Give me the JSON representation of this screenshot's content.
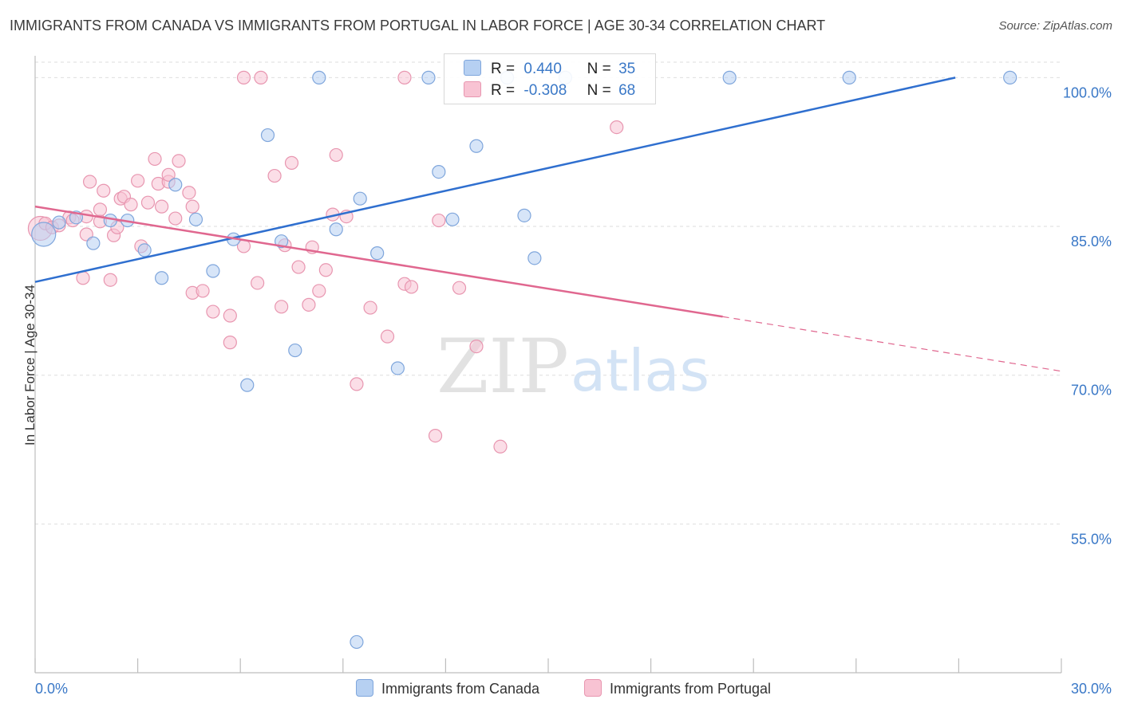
{
  "title": "IMMIGRANTS FROM CANADA VS IMMIGRANTS FROM PORTUGAL IN LABOR FORCE | AGE 30-34 CORRELATION CHART",
  "source": "Source: ZipAtlas.com",
  "watermark": {
    "zip": "ZIP",
    "atlas": "atlas"
  },
  "legend": {
    "r_label": "R =",
    "n_label": "N =",
    "canada": {
      "r": "0.440",
      "n": "35"
    },
    "portugal": {
      "r": "-0.308",
      "n": "68"
    }
  },
  "colors": {
    "canada_fill": "#b6d0f2",
    "canada_stroke": "#7fa6dc",
    "canada_line": "#2f6fcf",
    "portugal_fill": "#f8c3d3",
    "portugal_stroke": "#e896b0",
    "portugal_line": "#e0678f",
    "tick_label": "#3a78c7",
    "grid": "#dedede"
  },
  "chart_data": {
    "type": "scatter",
    "title": "IMMIGRANTS FROM CANADA VS IMMIGRANTS FROM PORTUGAL IN LABOR FORCE | AGE 30-34 CORRELATION CHART",
    "xlabel": "",
    "ylabel": "In Labor Force | Age 30-34",
    "xlim": [
      0,
      30
    ],
    "ylim": [
      40,
      102.2
    ],
    "x_tick_labels": [
      "0.0%",
      "30.0%"
    ],
    "y_ticks": [
      {
        "value": 55,
        "label": "55.0%"
      },
      {
        "value": 70,
        "label": "70.0%"
      },
      {
        "value": 85,
        "label": "85.0%"
      },
      {
        "value": 100,
        "label": "100.0%"
      }
    ],
    "series": [
      {
        "name": "Immigrants from Canada",
        "r": 0.44,
        "n": 35,
        "trend": {
          "x": [
            0,
            26.9
          ],
          "y": [
            79.4,
            100.0
          ],
          "dashed_to_x": null
        },
        "points": [
          {
            "x": 0.25,
            "y": 84.2,
            "big": true
          },
          {
            "x": 0.7,
            "y": 85.4
          },
          {
            "x": 1.2,
            "y": 85.9
          },
          {
            "x": 1.7,
            "y": 83.3
          },
          {
            "x": 2.2,
            "y": 85.6
          },
          {
            "x": 2.7,
            "y": 85.6
          },
          {
            "x": 3.2,
            "y": 82.6
          },
          {
            "x": 3.7,
            "y": 79.8
          },
          {
            "x": 4.1,
            "y": 89.2
          },
          {
            "x": 4.7,
            "y": 85.7
          },
          {
            "x": 5.2,
            "y": 80.5
          },
          {
            "x": 5.8,
            "y": 83.7
          },
          {
            "x": 6.2,
            "y": 69.0
          },
          {
            "x": 6.8,
            "y": 94.2
          },
          {
            "x": 7.2,
            "y": 83.5
          },
          {
            "x": 7.6,
            "y": 72.5
          },
          {
            "x": 8.3,
            "y": 100.0
          },
          {
            "x": 8.8,
            "y": 84.7
          },
          {
            "x": 9.4,
            "y": 43.1
          },
          {
            "x": 9.5,
            "y": 87.8
          },
          {
            "x": 10.0,
            "y": 82.3
          },
          {
            "x": 10.6,
            "y": 70.7
          },
          {
            "x": 11.5,
            "y": 100.0
          },
          {
            "x": 11.8,
            "y": 90.5
          },
          {
            "x": 12.2,
            "y": 85.7
          },
          {
            "x": 12.9,
            "y": 93.1
          },
          {
            "x": 13.8,
            "y": 100.0
          },
          {
            "x": 14.3,
            "y": 86.1
          },
          {
            "x": 14.6,
            "y": 81.8
          },
          {
            "x": 15.5,
            "y": 100.0
          },
          {
            "x": 20.3,
            "y": 100.0
          },
          {
            "x": 23.8,
            "y": 100.0
          },
          {
            "x": 28.5,
            "y": 100.0
          }
        ]
      },
      {
        "name": "Immigrants from Portugal",
        "r": -0.308,
        "n": 68,
        "trend": {
          "x": [
            0,
            20.1
          ],
          "y": [
            87.0,
            75.9
          ],
          "dashed_to_x": 30.0,
          "dashed_to_y": 70.4
        },
        "points": [
          {
            "x": 0.15,
            "y": 84.8,
            "big": true
          },
          {
            "x": 0.3,
            "y": 85.3
          },
          {
            "x": 0.5,
            "y": 84.9
          },
          {
            "x": 0.7,
            "y": 85.1
          },
          {
            "x": 1.0,
            "y": 85.9
          },
          {
            "x": 1.1,
            "y": 85.6
          },
          {
            "x": 1.5,
            "y": 84.2
          },
          {
            "x": 1.5,
            "y": 86.0
          },
          {
            "x": 1.4,
            "y": 79.8
          },
          {
            "x": 1.6,
            "y": 89.5
          },
          {
            "x": 1.9,
            "y": 85.5
          },
          {
            "x": 1.9,
            "y": 86.7
          },
          {
            "x": 2.0,
            "y": 88.6
          },
          {
            "x": 2.2,
            "y": 79.6
          },
          {
            "x": 2.3,
            "y": 84.1
          },
          {
            "x": 2.4,
            "y": 84.9
          },
          {
            "x": 2.5,
            "y": 87.8
          },
          {
            "x": 2.6,
            "y": 88.0
          },
          {
            "x": 2.8,
            "y": 87.2
          },
          {
            "x": 3.0,
            "y": 89.6
          },
          {
            "x": 3.1,
            "y": 83.0
          },
          {
            "x": 3.3,
            "y": 87.4
          },
          {
            "x": 3.5,
            "y": 91.8
          },
          {
            "x": 3.6,
            "y": 89.3
          },
          {
            "x": 3.7,
            "y": 87.0
          },
          {
            "x": 3.9,
            "y": 89.5
          },
          {
            "x": 3.9,
            "y": 90.2
          },
          {
            "x": 4.2,
            "y": 91.6
          },
          {
            "x": 4.1,
            "y": 85.8
          },
          {
            "x": 4.5,
            "y": 88.4
          },
          {
            "x": 4.6,
            "y": 87.0
          },
          {
            "x": 4.6,
            "y": 78.3
          },
          {
            "x": 4.9,
            "y": 78.5
          },
          {
            "x": 5.2,
            "y": 76.4
          },
          {
            "x": 5.7,
            "y": 76.0
          },
          {
            "x": 5.7,
            "y": 73.3
          },
          {
            "x": 6.1,
            "y": 100.0
          },
          {
            "x": 6.1,
            "y": 83.0
          },
          {
            "x": 6.5,
            "y": 79.3
          },
          {
            "x": 6.6,
            "y": 100.0
          },
          {
            "x": 7.0,
            "y": 90.1
          },
          {
            "x": 7.2,
            "y": 76.9
          },
          {
            "x": 7.3,
            "y": 83.1
          },
          {
            "x": 7.5,
            "y": 91.4
          },
          {
            "x": 7.7,
            "y": 80.9
          },
          {
            "x": 8.0,
            "y": 77.1
          },
          {
            "x": 8.1,
            "y": 82.9
          },
          {
            "x": 8.3,
            "y": 78.5
          },
          {
            "x": 8.5,
            "y": 80.6
          },
          {
            "x": 8.7,
            "y": 86.2
          },
          {
            "x": 8.8,
            "y": 92.2
          },
          {
            "x": 9.1,
            "y": 86.0
          },
          {
            "x": 9.4,
            "y": 69.1
          },
          {
            "x": 9.8,
            "y": 76.8
          },
          {
            "x": 10.3,
            "y": 73.9
          },
          {
            "x": 10.8,
            "y": 100.0
          },
          {
            "x": 10.8,
            "y": 79.2
          },
          {
            "x": 11.0,
            "y": 78.9
          },
          {
            "x": 11.7,
            "y": 63.9
          },
          {
            "x": 11.8,
            "y": 85.6
          },
          {
            "x": 12.4,
            "y": 78.8
          },
          {
            "x": 12.9,
            "y": 72.9
          },
          {
            "x": 13.6,
            "y": 62.8
          },
          {
            "x": 17.0,
            "y": 95.0
          }
        ]
      }
    ]
  },
  "bottom_legend": {
    "canada_label": "Immigrants from Canada",
    "portugal_label": "Immigrants from Portugal"
  }
}
